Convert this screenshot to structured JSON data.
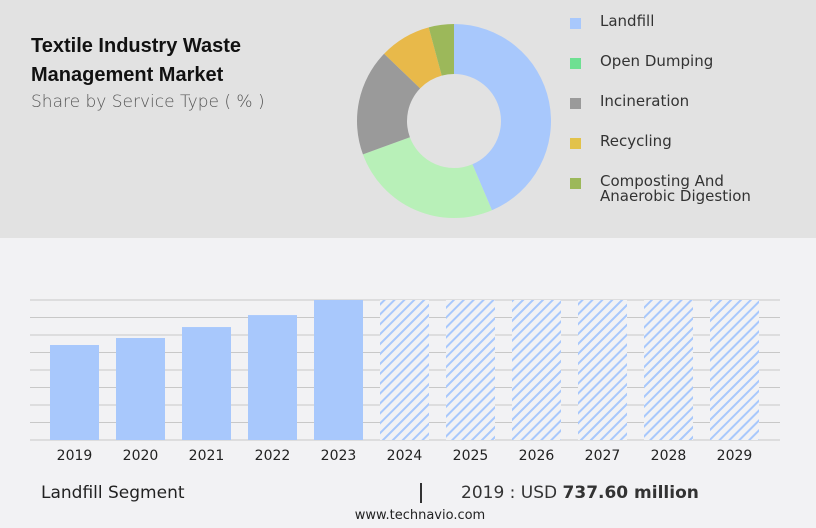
{
  "title": "Textile Industry Waste Management Market",
  "subtitle": "Share by Service Type ( % )",
  "footer": {
    "segment": "Landfill Segment",
    "separator": "|",
    "year_label": "2019 : USD",
    "value": "737.60 million",
    "url": "www.technavio.com"
  },
  "chart_data": [
    {
      "type": "pie",
      "variant": "donut",
      "legend_position": "right",
      "categories": [
        "Landfill",
        "Open Dumping",
        "Incineration",
        "Recycling",
        "Composting And Anaerobic Digestion"
      ],
      "values": [
        43.6,
        25.8,
        17.8,
        8.6,
        4.2
      ],
      "colors": [
        "#a8c8fc",
        "#b8f0b8",
        "#9a9a9a",
        "#e8b94a",
        "#9cb85a"
      ],
      "legend_colors": [
        "#a8c8fc",
        "#6ee092",
        "#9a9a9a",
        "#e2c24a",
        "#9cb85a"
      ]
    },
    {
      "type": "bar",
      "categories": [
        "2019",
        "2020",
        "2021",
        "2022",
        "2023",
        "2024",
        "2025",
        "2026",
        "2027",
        "2028",
        "2029"
      ],
      "values": [
        737.6,
        792,
        877,
        970,
        1087,
        null,
        null,
        null,
        null,
        null,
        null
      ],
      "forecast_years": [
        "2024",
        "2025",
        "2026",
        "2027",
        "2028",
        "2029"
      ],
      "forecast_style": "hatched",
      "color": "#a8c8fc",
      "grid": true,
      "ylim": [
        0,
        1087
      ]
    }
  ]
}
